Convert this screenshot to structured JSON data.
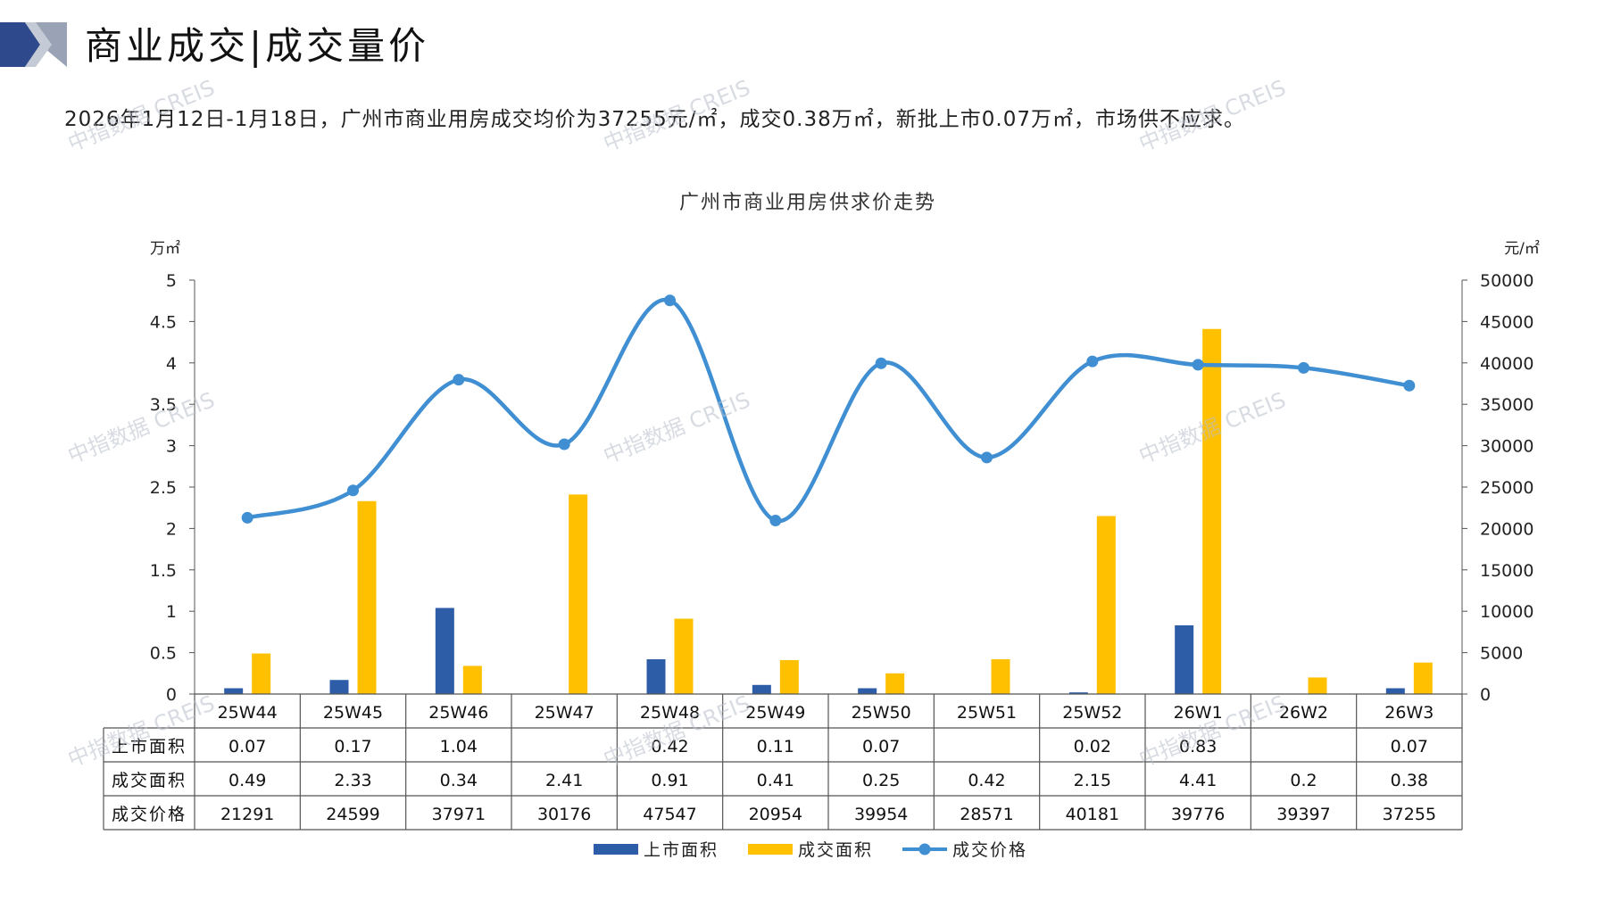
{
  "header": {
    "title": "商业成交|成交量价",
    "summary": "2026年1月12日-1月18日，广州市商业用房成交均价为37255元/㎡，成交0.38万㎡，新批上市0.07万㎡，市场供不应求。"
  },
  "watermark": "中指数据 CREIS",
  "colors": {
    "listed": "#2E5DA8",
    "transacted": "#FFC000",
    "price": "#3F8FD2",
    "logo_dark": "#2E4A8C",
    "logo_light": "#9AA3B5"
  },
  "chart_data": {
    "type": "bar+line",
    "title": "广州市商业用房供求价走势",
    "left_unit": "万㎡",
    "right_unit": "元/㎡",
    "categories": [
      "25W44",
      "25W45",
      "25W46",
      "25W47",
      "25W48",
      "25W49",
      "25W50",
      "25W51",
      "25W52",
      "26W1",
      "26W2",
      "26W3"
    ],
    "left_ylim": [
      0,
      5
    ],
    "left_ticks": [
      "0",
      "0.5",
      "1",
      "1.5",
      "2",
      "2.5",
      "3",
      "3.5",
      "4",
      "4.5",
      "5"
    ],
    "right_ylim": [
      0,
      50000
    ],
    "right_ticks": [
      "0",
      "5000",
      "10000",
      "15000",
      "20000",
      "25000",
      "30000",
      "35000",
      "40000",
      "45000",
      "50000"
    ],
    "series": [
      {
        "name": "上市面积",
        "type": "bar",
        "axis": "left",
        "values": [
          0.07,
          0.17,
          1.04,
          null,
          0.42,
          0.11,
          0.07,
          null,
          0.02,
          0.83,
          null,
          0.07
        ],
        "labels": [
          "0.07",
          "0.17",
          "1.04",
          "",
          "0.42",
          "0.11",
          "0.07",
          "",
          "0.02",
          "0.83",
          "",
          "0.07"
        ]
      },
      {
        "name": "成交面积",
        "type": "bar",
        "axis": "left",
        "values": [
          0.49,
          2.33,
          0.34,
          2.41,
          0.91,
          0.41,
          0.25,
          0.42,
          2.15,
          4.41,
          0.2,
          0.38
        ],
        "labels": [
          "0.49",
          "2.33",
          "0.34",
          "2.41",
          "0.91",
          "0.41",
          "0.25",
          "0.42",
          "2.15",
          "4.41",
          "0.2",
          "0.38"
        ]
      },
      {
        "name": "成交价格",
        "type": "line",
        "axis": "right",
        "values": [
          21291,
          24599,
          37971,
          30176,
          47547,
          20954,
          39954,
          28571,
          40181,
          39776,
          39397,
          37255
        ],
        "labels": [
          "21291",
          "24599",
          "37971",
          "30176",
          "47547",
          "20954",
          "39954",
          "28571",
          "40181",
          "39776",
          "39397",
          "37255"
        ]
      }
    ],
    "grid": false,
    "legend_placement": "bottom"
  }
}
